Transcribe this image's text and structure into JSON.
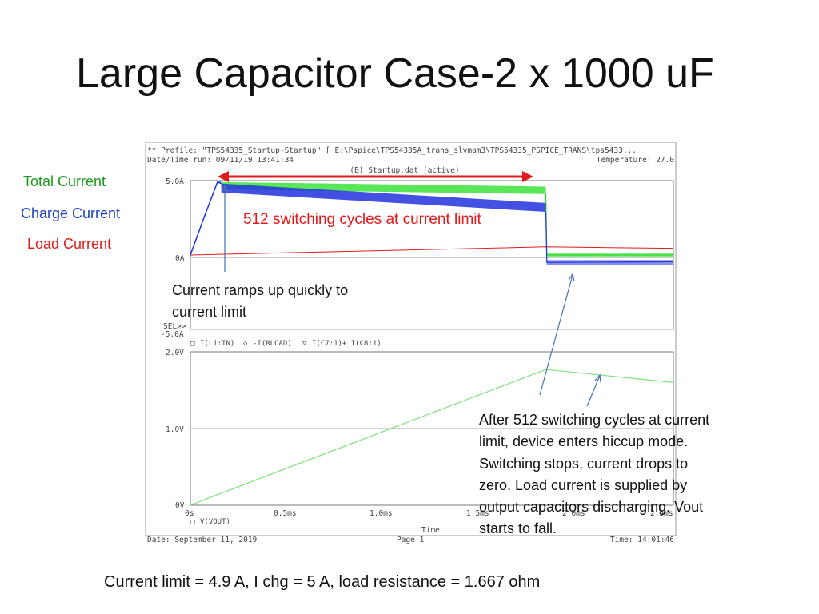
{
  "slide": {
    "title": "Large Capacitor Case-2 x 1000 uF",
    "legend_labels": [
      {
        "text": "Total Current",
        "color": "#1a9a1a"
      },
      {
        "text": "Charge Current",
        "color": "#1f3fbf"
      },
      {
        "text": "Load Current",
        "color": "#e01b1b"
      }
    ],
    "annotations": {
      "switching": "512 switching cycles at current limit",
      "ramp": "Current ramps up quickly to current limit",
      "hiccup": "After 512 switching cycles at current limit, device enters hiccup mode.  Switching stops, current drops to zero.  Load current is supplied by output capacitors discharging.  Vout starts to fall."
    },
    "footer": "Current limit = 4.9 A, I chg = 5 A, load resistance = 1.667 ohm",
    "colors": {
      "green": "#22dd22",
      "blue": "#2233dd",
      "red": "#e01b1b",
      "arrow": "#4a6fb0"
    }
  },
  "screenshot_header": {
    "profile": "** Profile: \"TPS54335_Startup-Startup\"  [ E:\\Pspice\\TPS54335A_trans_slvmam3\\TPS54335_PSPICE_TRANS\\tps5433...",
    "datetime": "Date/Time run: 09/11/19 13:41:34",
    "temperature": "Temperature: 27.0",
    "dataset": "(B) Startup.dat (active)"
  },
  "screenshot_footer": {
    "date": "Date: September 11, 2019",
    "page": "Page 1",
    "time": "Time: 14:01:46"
  },
  "chart_data": [
    {
      "type": "line",
      "ylim": [
        -5.0,
        5.0
      ],
      "yticks": [
        "5.0A",
        "0A",
        "-5.0A"
      ],
      "sel_label": "SEL>>",
      "legend": [
        "I(L1:IN)",
        "-I(RLOAD)",
        "I(C7:1)+ I(C8:1)"
      ],
      "series": [
        {
          "name": "I(L1:IN)",
          "marker": "□",
          "color": "#22dd22",
          "x": [
            0,
            0.07,
            0.14,
            0.16,
            1.84,
            1.845,
            2.5
          ],
          "y": [
            0,
            2.5,
            4.9,
            4.9,
            4.6,
            0,
            0
          ]
        },
        {
          "name": "-I(RLOAD)",
          "marker": "◇",
          "color": "#e01b1b",
          "x": [
            0,
            1.84,
            2.5
          ],
          "y": [
            0,
            0.55,
            0.45
          ]
        },
        {
          "name": "I(C7:1)+ I(C8:1)",
          "marker": "▽",
          "color": "#2233dd",
          "x": [
            0,
            0.07,
            0.14,
            0.16,
            1.84,
            1.845,
            2.5
          ],
          "y": [
            0,
            2.5,
            4.9,
            4.8,
            3.5,
            -0.5,
            -0.45
          ]
        }
      ]
    },
    {
      "type": "line",
      "ylim": [
        0,
        2.0
      ],
      "yticks": [
        "2.0V",
        "1.0V",
        "0V"
      ],
      "xticks": [
        "0s",
        "0.5ms",
        "1.0ms",
        "1.5ms",
        "2.0ms",
        "2.5ms"
      ],
      "xlabel": "Time",
      "legend": [
        "V(VOUT)"
      ],
      "series": [
        {
          "name": "V(VOUT)",
          "marker": "□",
          "color": "#22dd22",
          "x": [
            0,
            0.1,
            1.84,
            2.5
          ],
          "y": [
            0,
            0.1,
            1.77,
            1.6
          ]
        }
      ]
    }
  ]
}
